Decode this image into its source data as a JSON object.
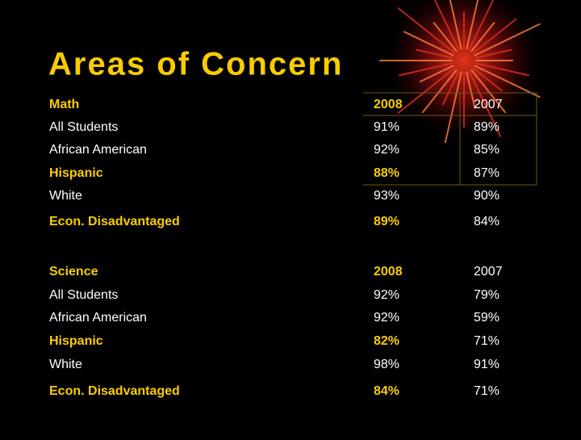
{
  "title": "Areas of Concern",
  "tables": [
    {
      "header": [
        "Math",
        "2008",
        "2007"
      ],
      "rows": [
        [
          "All Students",
          "91%",
          "89%"
        ],
        [
          "African American",
          "92%",
          "85%"
        ],
        [
          "Hispanic",
          "88%",
          "87%"
        ],
        [
          "White",
          "93%",
          "90%"
        ],
        [
          "Econ. Disadvantaged",
          "89%",
          "84%"
        ]
      ]
    },
    {
      "header": [
        "Science",
        "2008",
        "2007"
      ],
      "rows": [
        [
          "All Students",
          "92%",
          "79%"
        ],
        [
          "African American",
          "92%",
          "59%"
        ],
        [
          "Hispanic",
          "82%",
          "71%"
        ],
        [
          "White",
          "98%",
          "91%"
        ],
        [
          "Econ. Disadvantaged",
          "84%",
          "71%"
        ]
      ]
    }
  ]
}
